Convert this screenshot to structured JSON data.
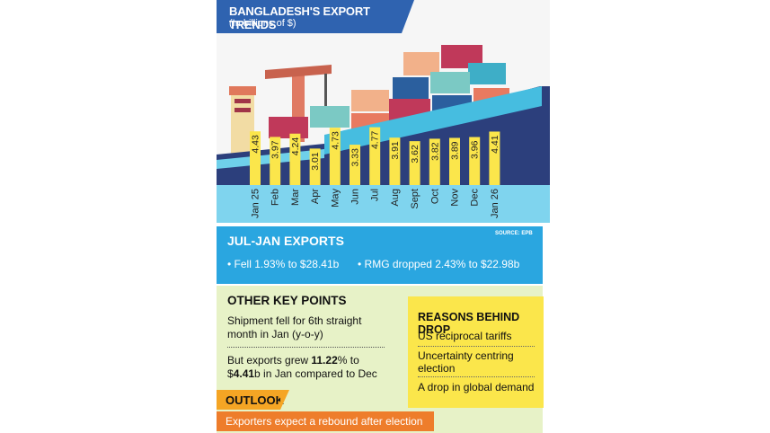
{
  "header": {
    "title": "BANGLADESH'S EXPORT TRENDS",
    "subtitle": "(In billions of $)"
  },
  "chart_data": {
    "type": "bar",
    "title": "BANGLADESH'S EXPORT TRENDS",
    "subtitle": "(In billions of $)",
    "categories": [
      "Jan 25",
      "Feb",
      "Mar",
      "Apr",
      "May",
      "Jun",
      "Jul",
      "Aug",
      "Sept",
      "Oct",
      "Nov",
      "Dec",
      "Jan 26"
    ],
    "values": [
      4.43,
      3.97,
      4.24,
      3.01,
      4.73,
      3.33,
      4.77,
      3.91,
      3.62,
      3.82,
      3.89,
      3.96,
      4.41
    ],
    "value_labels": [
      "4.43",
      "3.97",
      "4.24",
      "3.01",
      "4.73",
      "3.33",
      "4.77",
      "3.91",
      "3.62",
      "3.82",
      "3.89",
      "3.96",
      "4.41"
    ],
    "bar_color": "#fbe64b",
    "label_color": "#222222"
  },
  "source": "SOURCE: EPB",
  "jul_jan": {
    "title": "JUL-JAN EXPORTS",
    "items": [
      "Fell 1.93% to $28.41b",
      "RMG dropped 2.43% to $22.98b"
    ]
  },
  "other_key_points": {
    "title": "OTHER KEY POINTS",
    "point1": "Shipment fell for 6th straight month in Jan (y-o-y)",
    "point2_pre": "But exports grew ",
    "point2_bold1": "11.22",
    "point2_mid": "% to $",
    "point2_bold2": "4.41",
    "point2_post": "b in Jan compared to Dec"
  },
  "reasons": {
    "title": "REASONS BEHIND DROP",
    "items": [
      "US reciprocal tariffs",
      "Uncertainty centring election",
      "A drop in global demand"
    ]
  },
  "outlook": {
    "title": "OUTLOOK",
    "text": "Exporters expect a rebound after election"
  },
  "colors": {
    "title_bg": "#2f63b0",
    "band_bg": "#2aa6e0",
    "green_bg": "#e7f2c7",
    "reasons_bg": "#fbe64b",
    "outlook_tag": "#f5a524",
    "outlook_bar": "#ee7d2b"
  }
}
